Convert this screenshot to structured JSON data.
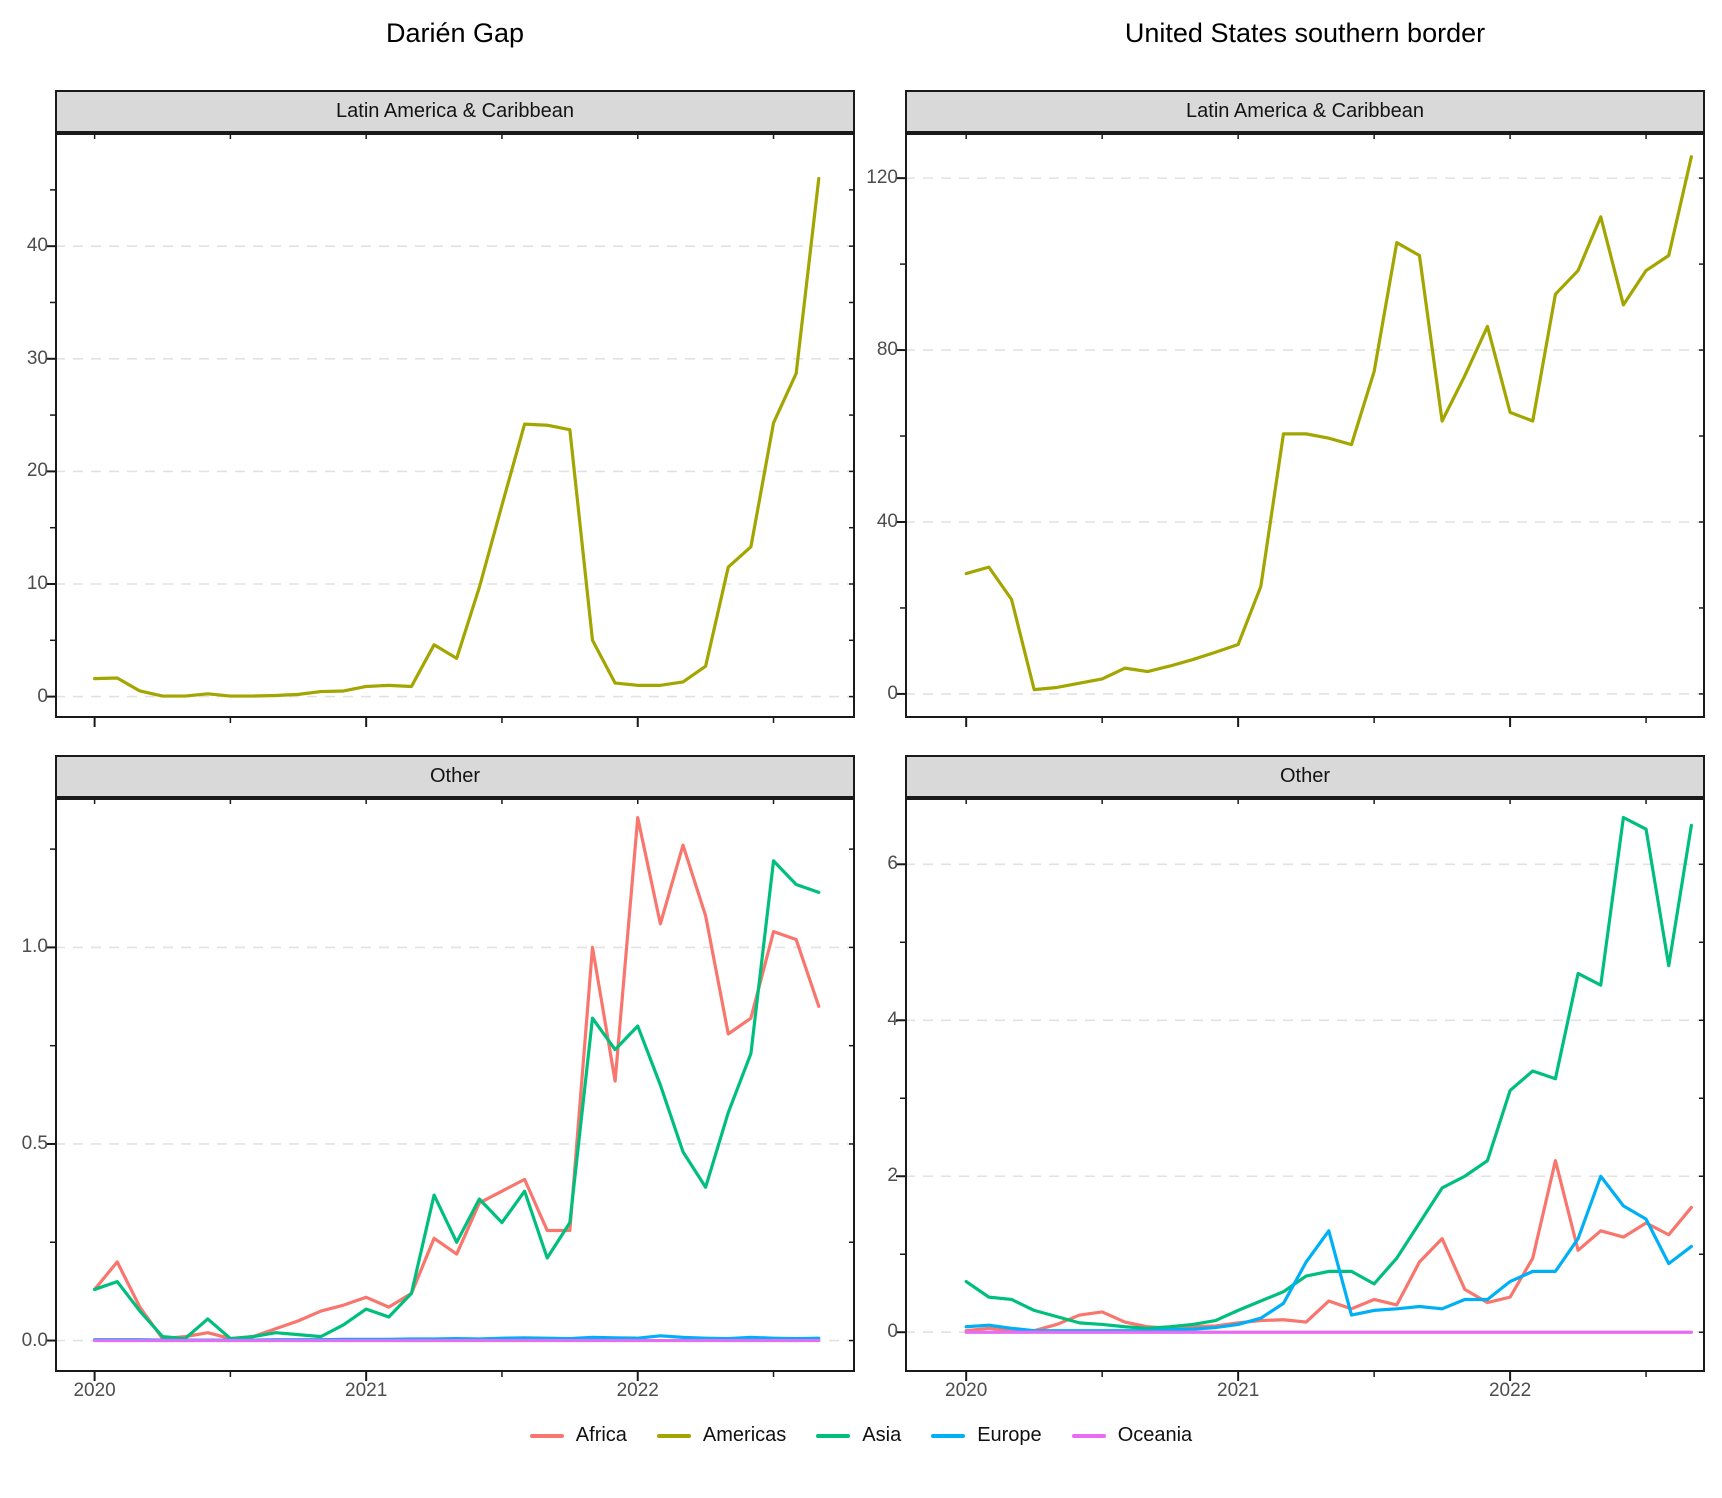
{
  "titles": {
    "left": "Darién Gap",
    "right": "United States southern border"
  },
  "legend": {
    "items": [
      {
        "label": "Africa",
        "color": "#F8766D"
      },
      {
        "label": "Americas",
        "color": "#A3A500"
      },
      {
        "label": "Asia",
        "color": "#00BF7D"
      },
      {
        "label": "Europe",
        "color": "#00B0F6"
      },
      {
        "label": "Oceania",
        "color": "#E76BF3"
      }
    ]
  },
  "chart_data": {
    "type": "line",
    "x": [
      "2020-01",
      "2020-02",
      "2020-03",
      "2020-04",
      "2020-05",
      "2020-06",
      "2020-07",
      "2020-08",
      "2020-09",
      "2020-10",
      "2020-11",
      "2020-12",
      "2021-01",
      "2021-02",
      "2021-03",
      "2021-04",
      "2021-05",
      "2021-06",
      "2021-07",
      "2021-08",
      "2021-09",
      "2021-10",
      "2021-11",
      "2021-12",
      "2022-01",
      "2022-02",
      "2022-03",
      "2022-04",
      "2022-05",
      "2022-06",
      "2022-07",
      "2022-08",
      "2022-09"
    ],
    "x_axis": {
      "tick_labels": [
        "2020",
        "2021",
        "2022"
      ],
      "tick_pos": [
        0,
        12,
        24
      ],
      "minor_pos": [
        6,
        18,
        30
      ]
    },
    "grid": "horizontal-dashed",
    "legend_position": "bottom",
    "panels": [
      {
        "column": "Darién Gap",
        "facet": "Latin America & Caribbean",
        "ylim": [
          -1.9,
          50.05
        ],
        "y_ticks": {
          "labels": [
            "0",
            "10",
            "20",
            "30",
            "40"
          ],
          "values": [
            0,
            10,
            20,
            30,
            40
          ],
          "minor": [
            5,
            15,
            25,
            35,
            45
          ]
        },
        "series": [
          {
            "name": "Americas",
            "color": "#A3A500",
            "values": [
              1.6,
              1.65,
              0.5,
              0.05,
              0.05,
              0.25,
              0.05,
              0.05,
              0.1,
              0.2,
              0.45,
              0.5,
              0.9,
              1.0,
              0.9,
              4.6,
              3.4,
              9.7,
              17,
              24.2,
              24.1,
              23.7,
              5.0,
              1.2,
              1.0,
              1.0,
              1.3,
              2.7,
              11.5,
              13.3,
              24.3,
              28.7,
              46
            ]
          }
        ]
      },
      {
        "column": "United States southern border",
        "facet": "Latin America & Caribbean",
        "ylim": [
          -5.6,
          130.5
        ],
        "y_ticks": {
          "labels": [
            "0",
            "40",
            "80",
            "120"
          ],
          "values": [
            0,
            40,
            80,
            120
          ],
          "minor": [
            20,
            60,
            100
          ]
        },
        "series": [
          {
            "name": "Americas",
            "color": "#A3A500",
            "values": [
              28,
              29.5,
              22,
              1,
              1.5,
              2.5,
              3.5,
              6,
              5.2,
              6.5,
              8,
              9.7,
              11.5,
              25,
              60.5,
              60.5,
              59.5,
              58,
              75,
              105,
              102,
              63.5,
              74,
              85.5,
              65.5,
              63.5,
              93,
              98.5,
              111,
              90.5,
              98.5,
              102,
              125
            ]
          }
        ]
      },
      {
        "column": "Darién Gap",
        "facet": "Other",
        "ylim": [
          -0.08,
          1.38
        ],
        "y_ticks": {
          "labels": [
            "0.0",
            "0.5",
            "1.0"
          ],
          "values": [
            0,
            0.5,
            1
          ],
          "minor": [
            0.25,
            0.75,
            1.25
          ]
        },
        "series": [
          {
            "name": "Africa",
            "color": "#F8766D",
            "values": [
              0.13,
              0.2,
              0.085,
              0.005,
              0.01,
              0.02,
              0.005,
              0.01,
              0.03,
              0.05,
              0.075,
              0.09,
              0.11,
              0.085,
              0.12,
              0.26,
              0.22,
              0.35,
              0.38,
              0.41,
              0.28,
              0.28,
              1.0,
              0.66,
              1.33,
              1.06,
              1.26,
              1.08,
              0.78,
              0.82,
              1.04,
              1.02,
              0.85
            ]
          },
          {
            "name": "Asia",
            "color": "#00BF7D",
            "values": [
              0.13,
              0.15,
              0.075,
              0.01,
              0.005,
              0.055,
              0.005,
              0.01,
              0.02,
              0.015,
              0.01,
              0.04,
              0.08,
              0.06,
              0.12,
              0.37,
              0.25,
              0.36,
              0.3,
              0.38,
              0.21,
              0.3,
              0.82,
              0.74,
              0.8,
              0.65,
              0.48,
              0.39,
              0.58,
              0.73,
              1.22,
              1.16,
              1.14
            ]
          },
          {
            "name": "Europe",
            "color": "#00B0F6",
            "values": [
              0.002,
              0.002,
              0.002,
              0.001,
              0.001,
              0.001,
              0.001,
              0.001,
              0.002,
              0.002,
              0.002,
              0.003,
              0.003,
              0.003,
              0.004,
              0.004,
              0.005,
              0.004,
              0.006,
              0.007,
              0.006,
              0.005,
              0.008,
              0.007,
              0.006,
              0.012,
              0.008,
              0.006,
              0.005,
              0.008,
              0.006,
              0.005,
              0.006
            ]
          },
          {
            "name": "Oceania",
            "color": "#E76BF3",
            "values": [
              0,
              0,
              0,
              0,
              0,
              0,
              0,
              0,
              0,
              0,
              0,
              0,
              0,
              0,
              0,
              0,
              0,
              0,
              0,
              0,
              0,
              0,
              0,
              0,
              0,
              0,
              0,
              0,
              0,
              0,
              0,
              0,
              0
            ]
          }
        ]
      },
      {
        "column": "United States southern border",
        "facet": "Other",
        "ylim": [
          -0.51,
          6.85
        ],
        "y_ticks": {
          "labels": [
            "0",
            "2",
            "4",
            "6"
          ],
          "values": [
            0,
            2,
            4,
            6
          ],
          "minor": [
            1,
            3,
            5
          ]
        },
        "series": [
          {
            "name": "Africa",
            "color": "#F8766D",
            "values": [
              0.02,
              0.05,
              0.02,
              0.02,
              0.1,
              0.22,
              0.26,
              0.13,
              0.07,
              0.05,
              0.07,
              0.08,
              0.12,
              0.15,
              0.16,
              0.13,
              0.4,
              0.3,
              0.42,
              0.35,
              0.9,
              1.2,
              0.55,
              0.38,
              0.45,
              0.95,
              2.2,
              1.05,
              1.3,
              1.22,
              1.4,
              1.25,
              1.6
            ]
          },
          {
            "name": "Asia",
            "color": "#00BF7D",
            "values": [
              0.65,
              0.45,
              0.42,
              0.28,
              0.2,
              0.12,
              0.1,
              0.07,
              0.05,
              0.07,
              0.1,
              0.15,
              0.28,
              0.4,
              0.52,
              0.72,
              0.78,
              0.78,
              0.62,
              0.95,
              1.4,
              1.85,
              2.0,
              2.2,
              3.1,
              3.35,
              3.25,
              4.6,
              4.45,
              6.6,
              6.45,
              4.7,
              6.5
            ]
          },
          {
            "name": "Europe",
            "color": "#00B0F6",
            "values": [
              0.07,
              0.09,
              0.05,
              0.02,
              0.02,
              0.02,
              0.02,
              0.02,
              0.02,
              0.03,
              0.04,
              0.06,
              0.1,
              0.18,
              0.37,
              0.9,
              1.3,
              0.22,
              0.28,
              0.3,
              0.33,
              0.3,
              0.42,
              0.42,
              0.65,
              0.78,
              0.78,
              1.2,
              2.0,
              1.62,
              1.45,
              0.88,
              1.1
            ]
          },
          {
            "name": "Oceania",
            "color": "#E76BF3",
            "values": [
              0,
              0,
              0,
              0,
              0,
              0,
              0,
              0,
              0,
              0,
              0,
              0,
              0,
              0,
              0,
              0,
              0,
              0,
              0,
              0,
              0,
              0,
              0,
              0,
              0,
              0,
              0,
              0,
              0,
              0,
              0,
              0,
              0
            ]
          }
        ]
      }
    ]
  }
}
